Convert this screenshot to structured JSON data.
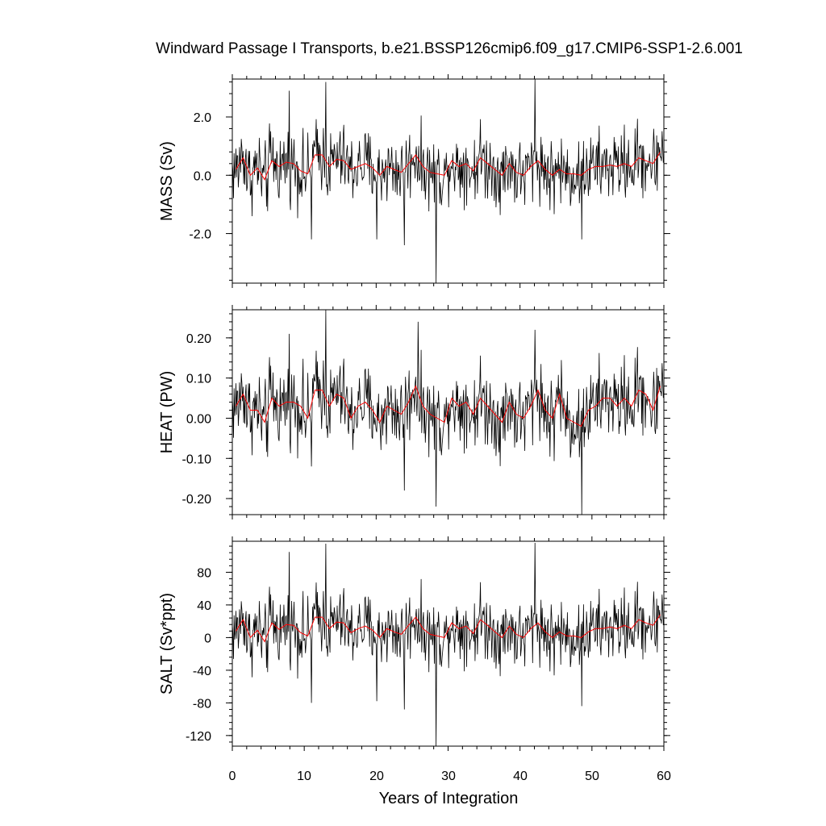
{
  "figure": {
    "title": "Windward Passage I Transports, b.e21.BSSP126cmip6.f09_g17.CMIP6-SSP1-2.6.001",
    "xlabel": "Years of Integration",
    "x_ticks": [
      "0",
      "10",
      "20",
      "30",
      "40",
      "50",
      "60"
    ]
  },
  "colors": {
    "monthly": "#000000",
    "annual_mean": "#ff0000",
    "frame": "#000000"
  },
  "chart_data": [
    {
      "type": "line",
      "ylabel": "MASS (Sv)",
      "xlim": [
        0,
        60
      ],
      "ylim": [
        -3.7,
        3.3
      ],
      "y_ticks": [
        2.0,
        0.0,
        -2.0
      ],
      "y_tick_labels": [
        "2.0",
        "0.0",
        "-2.0"
      ],
      "y_minor_step": 0.4,
      "monthly": {
        "amp": 0.75,
        "spikes": [
          [
            13.0,
            3.2
          ],
          [
            42.1,
            3.3
          ],
          [
            28.3,
            -3.7
          ],
          [
            11.0,
            -2.2
          ],
          [
            20.1,
            -2.2
          ],
          [
            23.9,
            -2.4
          ],
          [
            48.6,
            -2.2
          ],
          [
            7.9,
            2.9
          ]
        ]
      },
      "annual_mean": [
        0.2,
        0.6,
        0.0,
        0.25,
        -0.15,
        0.5,
        0.3,
        0.45,
        0.4,
        0.15,
        0.05,
        0.7,
        0.7,
        0.3,
        0.55,
        0.5,
        0.2,
        0.3,
        0.4,
        0.25,
        0.0,
        0.3,
        0.2,
        0.1,
        0.4,
        0.7,
        0.3,
        0.1,
        0.05,
        0.0,
        0.5,
        0.3,
        0.4,
        0.15,
        0.6,
        0.4,
        0.2,
        0.0,
        0.4,
        0.1,
        0.0,
        0.3,
        0.5,
        0.2,
        0.0,
        0.2,
        0.05,
        0.05,
        0.0,
        0.2,
        0.3,
        0.3,
        0.35,
        0.3,
        0.4,
        0.3,
        0.6,
        0.5,
        0.4,
        0.8
      ]
    },
    {
      "type": "line",
      "ylabel": "HEAT (PW)",
      "xlim": [
        0,
        60
      ],
      "ylim": [
        -0.24,
        0.27
      ],
      "y_ticks": [
        0.2,
        0.1,
        0.0,
        -0.1,
        -0.2
      ],
      "y_tick_labels": [
        "0.20",
        "0.10",
        "0.00",
        "-0.10",
        "-0.20"
      ],
      "y_minor_step": 0.02,
      "monthly": {
        "amp": 0.06,
        "spikes": [
          [
            13.0,
            0.27
          ],
          [
            25.8,
            0.24
          ],
          [
            28.3,
            -0.22
          ],
          [
            48.6,
            -0.24
          ],
          [
            11.0,
            -0.12
          ],
          [
            23.9,
            -0.18
          ],
          [
            42.1,
            0.22
          ],
          [
            7.9,
            0.21
          ]
        ]
      },
      "annual_mean": [
        0.03,
        0.06,
        0.02,
        0.02,
        -0.01,
        0.05,
        0.03,
        0.04,
        0.04,
        0.03,
        0.0,
        0.07,
        0.07,
        0.03,
        0.06,
        0.05,
        0.0,
        0.03,
        0.04,
        0.02,
        -0.01,
        0.03,
        0.02,
        0.01,
        0.04,
        0.08,
        0.03,
        0.01,
        0.0,
        -0.01,
        0.05,
        0.03,
        0.04,
        0.01,
        0.05,
        0.03,
        0.01,
        -0.01,
        0.04,
        0.01,
        0.0,
        0.03,
        0.07,
        0.02,
        0.0,
        0.06,
        0.0,
        -0.01,
        -0.02,
        0.02,
        0.03,
        0.05,
        0.05,
        0.03,
        0.05,
        0.03,
        0.07,
        0.06,
        0.02,
        0.08
      ]
    },
    {
      "type": "line",
      "ylabel": "SALT (Sv*ppt)",
      "xlim": [
        0,
        60
      ],
      "ylim": [
        -133,
        118
      ],
      "y_ticks": [
        80,
        40,
        0,
        -40,
        -80,
        -120
      ],
      "y_tick_labels": [
        "80",
        "40",
        "0",
        "-40",
        "-80",
        "-120"
      ],
      "y_minor_step": 8,
      "monthly": {
        "amp": 26,
        "spikes": [
          [
            13.0,
            115
          ],
          [
            42.1,
            116
          ],
          [
            28.3,
            -133
          ],
          [
            11.0,
            -80
          ],
          [
            20.1,
            -78
          ],
          [
            23.9,
            -88
          ],
          [
            48.6,
            -84
          ],
          [
            7.9,
            105
          ]
        ]
      },
      "annual_mean": [
        8,
        22,
        0,
        9,
        -5,
        18,
        10,
        16,
        15,
        6,
        2,
        25,
        25,
        11,
        19,
        18,
        6,
        11,
        14,
        9,
        0,
        11,
        7,
        4,
        15,
        25,
        11,
        4,
        2,
        0,
        18,
        11,
        14,
        5,
        22,
        15,
        7,
        0,
        14,
        4,
        0,
        11,
        18,
        7,
        0,
        7,
        2,
        2,
        0,
        7,
        11,
        11,
        13,
        11,
        15,
        11,
        22,
        18,
        15,
        28
      ]
    }
  ]
}
